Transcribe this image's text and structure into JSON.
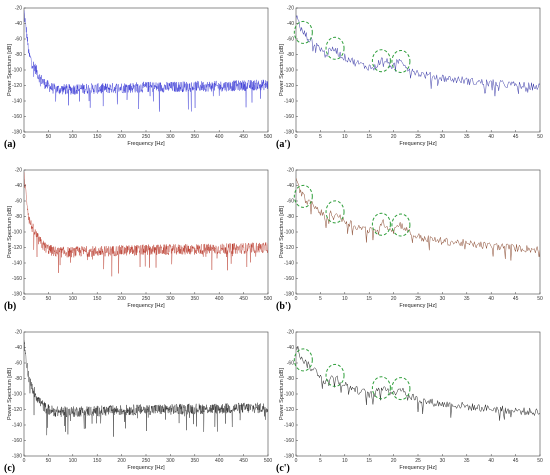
{
  "chart_data": [
    {
      "panel_label": "(a)",
      "type": "line",
      "xlabel": "Frequency [Hz]",
      "ylabel": "Power Spectrum [dB]",
      "xlim": [
        0,
        500
      ],
      "ylim": [
        -180,
        -20
      ],
      "xticks": [
        "0",
        "50",
        "100",
        "150",
        "200",
        "250",
        "300",
        "350",
        "400",
        "450",
        "500"
      ],
      "yticks": [
        "-20",
        "-40",
        "-60",
        "-80",
        "-100",
        "-120",
        "-140",
        "-160",
        "-180"
      ],
      "grid": false,
      "series": [
        {
          "color": "#1f1fd0",
          "x": [
            0,
            5,
            10,
            15,
            20,
            25,
            30,
            40,
            50,
            60,
            70,
            80,
            100,
            120,
            150,
            200,
            250,
            300,
            350,
            400,
            450,
            500
          ],
          "y": [
            -25,
            -50,
            -80,
            -88,
            -95,
            -100,
            -108,
            -116,
            -121,
            -124,
            -125,
            -125,
            -125,
            -124,
            -124,
            -123,
            -122,
            -122,
            -121,
            -121,
            -120,
            -119
          ]
        }
      ]
    },
    {
      "panel_label": "(a')",
      "type": "line",
      "xlabel": "Frequency [Hz]",
      "ylabel": "Power Spectrum [dB]",
      "xlim": [
        0,
        50
      ],
      "ylim": [
        -180,
        -20
      ],
      "xticks": [
        "0",
        "5",
        "10",
        "15",
        "20",
        "25",
        "30",
        "35",
        "40",
        "45",
        "50"
      ],
      "yticks": [
        "-20",
        "-40",
        "-60",
        "-80",
        "-100",
        "-120",
        "-140",
        "-160",
        "-180"
      ],
      "grid": false,
      "circle_color": "#2e9e3a",
      "highlighted_x": [
        1.5,
        8,
        17.5,
        21.5
      ],
      "series": [
        {
          "color": "#3a3aa8",
          "x": [
            0,
            0.5,
            1,
            2,
            3,
            4,
            5,
            6,
            7,
            8,
            9,
            10,
            11,
            12,
            13,
            14,
            15,
            16,
            17,
            18,
            19,
            20,
            21,
            22,
            23,
            24,
            25,
            26,
            28,
            30,
            32,
            34,
            36,
            38,
            40,
            42,
            44,
            46,
            48,
            50
          ],
          "y": [
            -30,
            -38,
            -48,
            -55,
            -62,
            -66,
            -72,
            -80,
            -76,
            -72,
            -80,
            -84,
            -86,
            -90,
            -92,
            -95,
            -96,
            -98,
            -90,
            -86,
            -92,
            -96,
            -88,
            -90,
            -98,
            -100,
            -104,
            -106,
            -108,
            -110,
            -112,
            -113,
            -115,
            -116,
            -117,
            -118,
            -119,
            -120,
            -121,
            -122
          ]
        }
      ]
    },
    {
      "panel_label": "(b)",
      "type": "line",
      "xlabel": "Frequency [Hz]",
      "ylabel": "Power Spectrum [dB]",
      "xlim": [
        0,
        500
      ],
      "ylim": [
        -180,
        -20
      ],
      "xticks": [
        "0",
        "50",
        "100",
        "150",
        "200",
        "250",
        "300",
        "350",
        "400",
        "450",
        "500"
      ],
      "yticks": [
        "-20",
        "-40",
        "-60",
        "-80",
        "-100",
        "-120",
        "-140",
        "-160",
        "-180"
      ],
      "grid": false,
      "series": [
        {
          "color": "#b02010",
          "x": [
            0,
            5,
            10,
            15,
            20,
            25,
            30,
            40,
            50,
            60,
            70,
            80,
            100,
            120,
            150,
            200,
            250,
            300,
            350,
            400,
            450,
            500
          ],
          "y": [
            -28,
            -55,
            -82,
            -92,
            -98,
            -104,
            -110,
            -118,
            -122,
            -125,
            -126,
            -126,
            -126,
            -125,
            -125,
            -124,
            -123,
            -123,
            -122,
            -122,
            -121,
            -120
          ]
        }
      ]
    },
    {
      "panel_label": "(b')",
      "type": "line",
      "xlabel": "Frequency [Hz]",
      "ylabel": "Power Spectrum [dB]",
      "xlim": [
        0,
        50
      ],
      "ylim": [
        -180,
        -20
      ],
      "xticks": [
        "0",
        "5",
        "10",
        "15",
        "20",
        "25",
        "30",
        "35",
        "40",
        "45",
        "50"
      ],
      "yticks": [
        "-20",
        "-40",
        "-60",
        "-80",
        "-100",
        "-120",
        "-140",
        "-160",
        "-180"
      ],
      "grid": false,
      "circle_color": "#2e9e3a",
      "highlighted_x": [
        1.5,
        8,
        17.5,
        21.5
      ],
      "series": [
        {
          "color": "#8a4a30",
          "x": [
            0,
            0.5,
            1,
            2,
            3,
            4,
            5,
            6,
            7,
            8,
            9,
            10,
            11,
            12,
            13,
            14,
            15,
            16,
            17,
            18,
            19,
            20,
            21,
            22,
            23,
            24,
            25,
            26,
            28,
            30,
            32,
            34,
            36,
            38,
            40,
            42,
            44,
            46,
            48,
            50
          ],
          "y": [
            -34,
            -42,
            -50,
            -58,
            -64,
            -68,
            -74,
            -82,
            -78,
            -74,
            -82,
            -86,
            -88,
            -92,
            -94,
            -96,
            -98,
            -100,
            -92,
            -88,
            -94,
            -98,
            -90,
            -92,
            -100,
            -103,
            -106,
            -108,
            -110,
            -112,
            -113,
            -114,
            -116,
            -117,
            -118,
            -119,
            -120,
            -121,
            -122,
            -123
          ]
        }
      ]
    },
    {
      "panel_label": "(c)",
      "type": "line",
      "xlabel": "Frequency [Hz]",
      "ylabel": "Power Spectrum [dB]",
      "xlim": [
        0,
        500
      ],
      "ylim": [
        -180,
        -20
      ],
      "xticks": [
        "0",
        "50",
        "100",
        "150",
        "200",
        "250",
        "300",
        "350",
        "400",
        "450",
        "500"
      ],
      "yticks": [
        "-20",
        "-40",
        "-60",
        "-80",
        "-100",
        "-120",
        "-140",
        "-160",
        "-180"
      ],
      "grid": false,
      "series": [
        {
          "color": "#111111",
          "x": [
            0,
            5,
            10,
            15,
            20,
            25,
            30,
            40,
            50,
            60,
            70,
            80,
            100,
            120,
            150,
            200,
            250,
            300,
            350,
            400,
            450,
            500
          ],
          "y": [
            -30,
            -58,
            -80,
            -90,
            -96,
            -102,
            -108,
            -116,
            -120,
            -122,
            -123,
            -123,
            -123,
            -122,
            -122,
            -121,
            -120,
            -120,
            -119,
            -119,
            -118,
            -118
          ]
        }
      ]
    },
    {
      "panel_label": "(c')",
      "type": "line",
      "xlabel": "Frequency [Hz]",
      "ylabel": "Power Spectrum [dB]",
      "xlim": [
        0,
        50
      ],
      "ylim": [
        -180,
        -20
      ],
      "xticks": [
        "0",
        "5",
        "10",
        "15",
        "20",
        "25",
        "30",
        "35",
        "40",
        "45",
        "50"
      ],
      "yticks": [
        "-20",
        "-40",
        "-60",
        "-80",
        "-100",
        "-120",
        "-140",
        "-160",
        "-180"
      ],
      "grid": false,
      "circle_color": "#2e9e3a",
      "highlighted_x": [
        1.5,
        8,
        17.5,
        21.5
      ],
      "series": [
        {
          "color": "#222222",
          "x": [
            0,
            0.5,
            1,
            2,
            3,
            4,
            5,
            6,
            7,
            8,
            9,
            10,
            11,
            12,
            13,
            14,
            15,
            16,
            17,
            18,
            19,
            20,
            21,
            22,
            23,
            24,
            25,
            26,
            28,
            30,
            32,
            34,
            36,
            38,
            40,
            42,
            44,
            46,
            48,
            50
          ],
          "y": [
            -36,
            -44,
            -52,
            -60,
            -66,
            -70,
            -76,
            -84,
            -80,
            -76,
            -84,
            -88,
            -90,
            -94,
            -96,
            -98,
            -100,
            -102,
            -94,
            -90,
            -96,
            -100,
            -92,
            -94,
            -102,
            -104,
            -107,
            -109,
            -111,
            -113,
            -114,
            -115,
            -117,
            -118,
            -119,
            -120,
            -121,
            -122,
            -123,
            -124
          ]
        }
      ]
    }
  ]
}
